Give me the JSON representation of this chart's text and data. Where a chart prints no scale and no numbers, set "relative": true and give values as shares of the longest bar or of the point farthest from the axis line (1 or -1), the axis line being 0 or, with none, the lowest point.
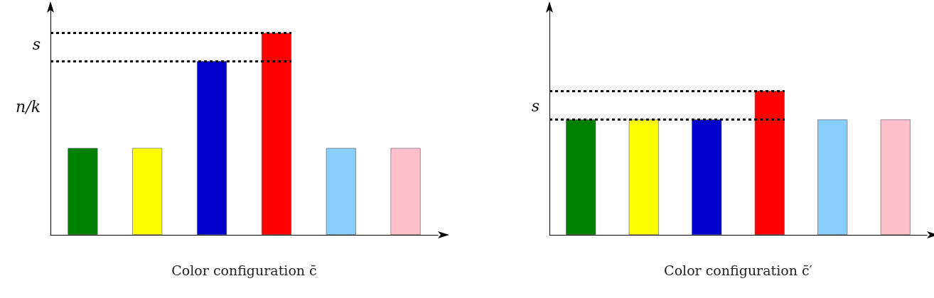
{
  "chart_data": [
    {
      "type": "bar",
      "relative": true,
      "xlabel": "Color configuration c̄",
      "categories": [
        null,
        null,
        null,
        null,
        null,
        null
      ],
      "values": [
        0.43,
        0.43,
        0.86,
        1,
        0.43,
        0.43
      ],
      "colors": [
        "#008000",
        "#ffff00",
        "#0000cc",
        "#ff0000",
        "#87cefa",
        "#ffc0cb"
      ],
      "ref_lines": [
        {
          "axis": "y",
          "value": 1,
          "line_style": "dotted"
        },
        {
          "axis": "y",
          "value": 0.86,
          "line_style": "dotted"
        }
      ],
      "annotations": [
        "s",
        "n/k"
      ],
      "grid": false
    },
    {
      "type": "bar",
      "relative": true,
      "xlabel": "Color configuration c̄′",
      "categories": [
        null,
        null,
        null,
        null,
        null,
        null
      ],
      "values": [
        0.8,
        0.8,
        0.8,
        1,
        0.8,
        0.8
      ],
      "colors": [
        "#008000",
        "#ffff00",
        "#0000cc",
        "#ff0000",
        "#87cefa",
        "#ffc0cb"
      ],
      "ref_lines": [
        {
          "axis": "y",
          "value": 1,
          "line_style": "dotted"
        },
        {
          "axis": "y",
          "value": 0.8,
          "line_style": "dotted"
        }
      ],
      "annotations": [
        "s"
      ],
      "grid": false
    }
  ]
}
